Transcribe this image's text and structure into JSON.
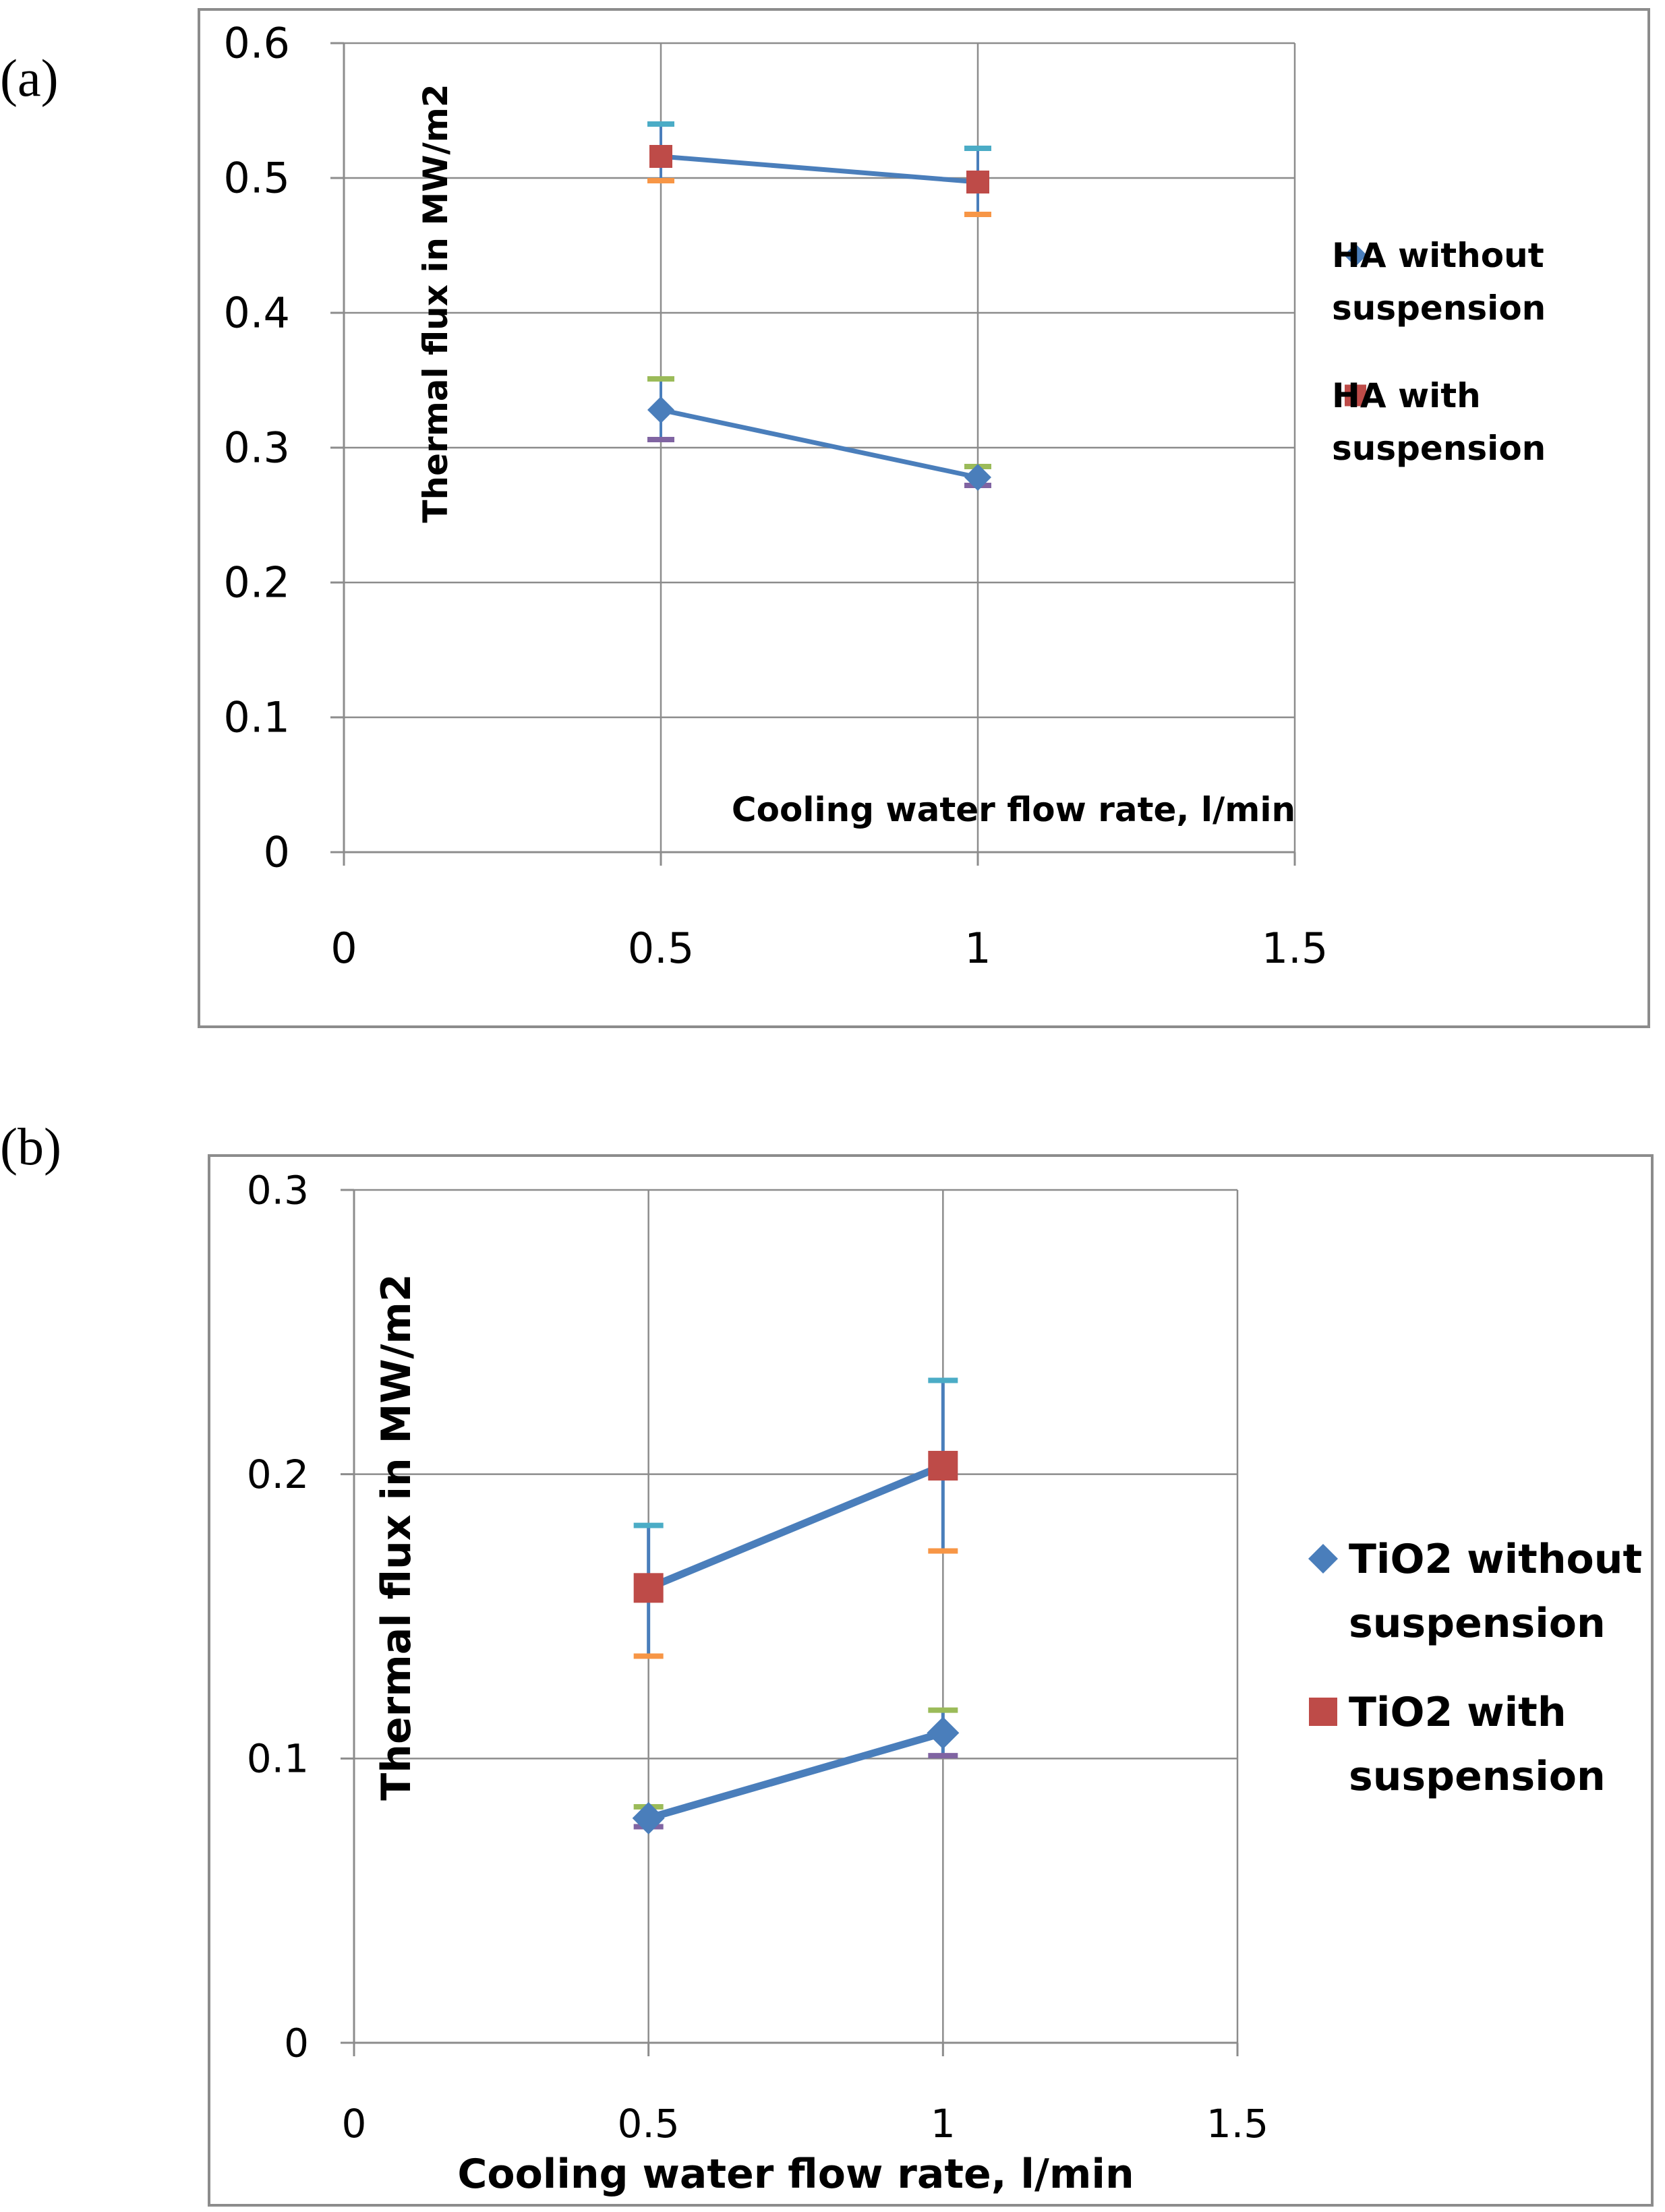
{
  "colors": {
    "series_line": "#4a7ebb",
    "marker_without": "#4a7ebb",
    "marker_with": "#be4b48",
    "grid": "#8c8c8c",
    "frame": "#8c8c8c",
    "err_cyan": "#4bacc6",
    "err_orange": "#f79646",
    "err_green": "#9bbb59",
    "err_purple": "#8064a2"
  },
  "chart_data": [
    {
      "panel": "(a)",
      "type": "scatter",
      "xlabel": "Cooling water flow rate, l/min",
      "ylabel": "Thermal flux in MW/m2",
      "xlim": [
        0,
        1.5
      ],
      "ylim": [
        0,
        0.6
      ],
      "xticks": [
        "0",
        "0.5",
        "1",
        "1.5"
      ],
      "yticks": [
        "0",
        "0.1",
        "0.2",
        "0.3",
        "0.4",
        "0.5",
        "0.6"
      ],
      "grid": true,
      "legend_position": "right",
      "series": [
        {
          "name": "HA without suspension",
          "legend_lines": [
            "HA without",
            "suspension"
          ],
          "marker": "diamond",
          "x": [
            0.5,
            1
          ],
          "y": [
            0.328,
            0.278
          ],
          "err_high": [
            0.351,
            0.286
          ],
          "err_low": [
            0.306,
            0.272
          ]
        },
        {
          "name": "HA with suspension",
          "legend_lines": [
            "HA with",
            "suspension"
          ],
          "marker": "square",
          "x": [
            0.5,
            1
          ],
          "y": [
            0.516,
            0.497
          ],
          "err_high": [
            0.54,
            0.522
          ],
          "err_low": [
            0.498,
            0.473
          ]
        }
      ]
    },
    {
      "panel": "(b)",
      "type": "scatter",
      "xlabel": "Cooling water flow rate, l/min",
      "ylabel": "Thermal flux in MW/m2",
      "xlim": [
        0,
        1.5
      ],
      "ylim": [
        0,
        0.3
      ],
      "xticks": [
        "0",
        "0.5",
        "1",
        "1.5"
      ],
      "yticks": [
        "0",
        "0.1",
        "0.2",
        "0.3"
      ],
      "grid": true,
      "legend_position": "right",
      "series": [
        {
          "name": "TiO2 without suspension",
          "legend_lines": [
            "TiO2 without",
            "suspension"
          ],
          "marker": "diamond",
          "x": [
            0.5,
            1
          ],
          "y": [
            0.079,
            0.109
          ],
          "err_high": [
            0.083,
            0.117
          ],
          "err_low": [
            0.076,
            0.101
          ]
        },
        {
          "name": "TiO2 with suspension",
          "legend_lines": [
            "TiO2 with",
            "suspension"
          ],
          "marker": "square",
          "x": [
            0.5,
            1
          ],
          "y": [
            0.16,
            0.203
          ],
          "err_high": [
            0.182,
            0.233
          ],
          "err_low": [
            0.136,
            0.173
          ]
        }
      ]
    }
  ]
}
